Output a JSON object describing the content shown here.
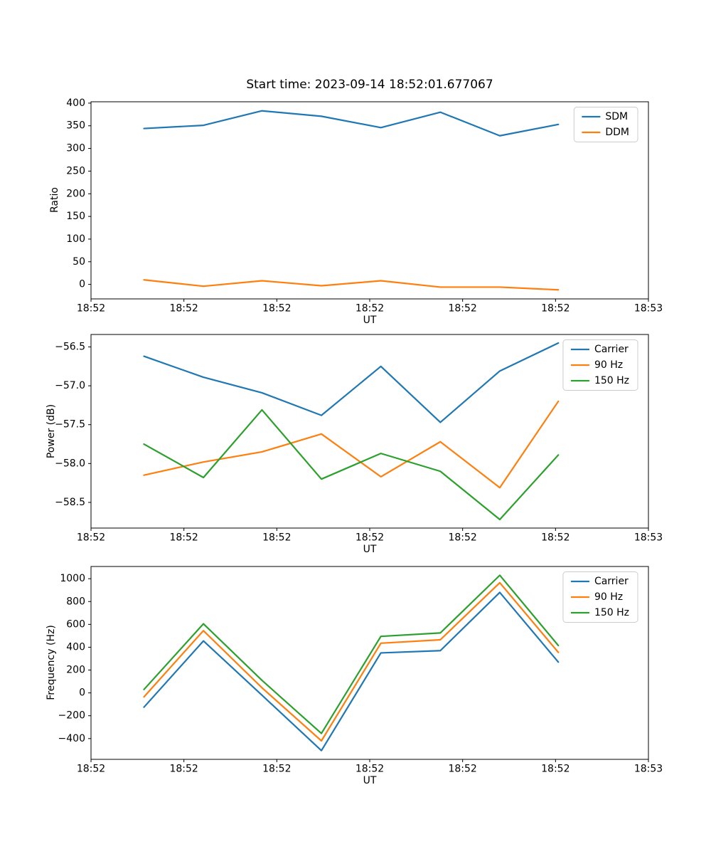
{
  "figure": {
    "title": "Start time: 2023-09-14 18:52:01.677067",
    "background": "#ffffff",
    "axis_color": "#000000",
    "legend_border_color": "#cccccc"
  },
  "chart_data": [
    {
      "type": "line",
      "title": "Start time: 2023-09-14 18:52:01.677067",
      "xlabel": "UT",
      "ylabel": "Ratio",
      "x_seconds_after_1852": [
        5.7,
        12.1,
        18.4,
        24.8,
        31.2,
        37.6,
        44.0,
        50.3
      ],
      "xlim": [
        0,
        60
      ],
      "xticks": [
        {
          "t": 0,
          "label": "18:52"
        },
        {
          "t": 10,
          "label": "18:52"
        },
        {
          "t": 20,
          "label": "18:52"
        },
        {
          "t": 30,
          "label": "18:52"
        },
        {
          "t": 40,
          "label": "18:52"
        },
        {
          "t": 50,
          "label": "18:52"
        },
        {
          "t": 60,
          "label": "18:53"
        }
      ],
      "ylim": [
        -32,
        403
      ],
      "yticks": [
        {
          "v": 0,
          "label": "0"
        },
        {
          "v": 50,
          "label": "50"
        },
        {
          "v": 100,
          "label": "100"
        },
        {
          "v": 150,
          "label": "150"
        },
        {
          "v": 200,
          "label": "200"
        },
        {
          "v": 250,
          "label": "250"
        },
        {
          "v": 300,
          "label": "300"
        },
        {
          "v": 350,
          "label": "350"
        },
        {
          "v": 400,
          "label": "400"
        }
      ],
      "grid": false,
      "legend_position": "upper right",
      "series": [
        {
          "name": "SDM",
          "color": "#1f77b4",
          "values": [
            344,
            351,
            383,
            371,
            346,
            380,
            328,
            353
          ]
        },
        {
          "name": "DDM",
          "color": "#ff7f0e",
          "values": [
            10,
            -4,
            8,
            -3,
            8,
            -6,
            -6,
            -12
          ]
        }
      ]
    },
    {
      "type": "line",
      "title": "",
      "xlabel": "UT",
      "ylabel": "Power (dB)",
      "x_seconds_after_1852": [
        5.7,
        12.1,
        18.4,
        24.8,
        31.2,
        37.6,
        44.0,
        50.3
      ],
      "xlim": [
        0,
        60
      ],
      "xticks": [
        {
          "t": 0,
          "label": "18:52"
        },
        {
          "t": 10,
          "label": "18:52"
        },
        {
          "t": 20,
          "label": "18:52"
        },
        {
          "t": 30,
          "label": "18:52"
        },
        {
          "t": 40,
          "label": "18:52"
        },
        {
          "t": 50,
          "label": "18:52"
        },
        {
          "t": 60,
          "label": "18:53"
        }
      ],
      "ylim": [
        -58.83,
        -56.34
      ],
      "yticks": [
        {
          "v": -58.5,
          "label": "−58.5"
        },
        {
          "v": -58.0,
          "label": "−58.0"
        },
        {
          "v": -57.5,
          "label": "−57.5"
        },
        {
          "v": -57.0,
          "label": "−57.0"
        },
        {
          "v": -56.5,
          "label": "−56.5"
        }
      ],
      "grid": false,
      "legend_position": "upper right",
      "series": [
        {
          "name": "Carrier",
          "color": "#1f77b4",
          "values": [
            -56.62,
            -56.89,
            -57.09,
            -57.38,
            -56.75,
            -57.47,
            -56.81,
            -56.45
          ]
        },
        {
          "name": "90 Hz",
          "color": "#ff7f0e",
          "values": [
            -58.15,
            -57.98,
            -57.85,
            -57.62,
            -58.17,
            -57.72,
            -58.31,
            -57.2
          ]
        },
        {
          "name": "150 Hz",
          "color": "#2ca02c",
          "values": [
            -57.75,
            -58.18,
            -57.31,
            -58.2,
            -57.87,
            -58.1,
            -58.72,
            -57.89
          ]
        }
      ]
    },
    {
      "type": "line",
      "title": "",
      "xlabel": "UT",
      "ylabel": "Frequency (Hz)",
      "x_seconds_after_1852": [
        5.7,
        12.1,
        18.4,
        24.8,
        31.2,
        37.6,
        44.0,
        50.3
      ],
      "xlim": [
        0,
        60
      ],
      "xticks": [
        {
          "t": 0,
          "label": "18:52"
        },
        {
          "t": 10,
          "label": "18:52"
        },
        {
          "t": 20,
          "label": "18:52"
        },
        {
          "t": 30,
          "label": "18:52"
        },
        {
          "t": 40,
          "label": "18:52"
        },
        {
          "t": 50,
          "label": "18:52"
        },
        {
          "t": 60,
          "label": "18:53"
        }
      ],
      "ylim": [
        -582,
        1107
      ],
      "yticks": [
        {
          "v": -400,
          "label": "−400"
        },
        {
          "v": -200,
          "label": "−200"
        },
        {
          "v": 0,
          "label": "0"
        },
        {
          "v": 200,
          "label": "200"
        },
        {
          "v": 400,
          "label": "400"
        },
        {
          "v": 600,
          "label": "600"
        },
        {
          "v": 800,
          "label": "800"
        },
        {
          "v": 1000,
          "label": "1000"
        }
      ],
      "grid": false,
      "legend_position": "upper right",
      "series": [
        {
          "name": "Carrier",
          "color": "#1f77b4",
          "values": [
            -125,
            455,
            -20,
            -505,
            350,
            370,
            880,
            270
          ]
        },
        {
          "name": "90 Hz",
          "color": "#ff7f0e",
          "values": [
            -35,
            545,
            45,
            -420,
            435,
            465,
            965,
            355
          ]
        },
        {
          "name": "150 Hz",
          "color": "#2ca02c",
          "values": [
            30,
            605,
            110,
            -355,
            495,
            525,
            1030,
            415
          ]
        }
      ]
    }
  ]
}
